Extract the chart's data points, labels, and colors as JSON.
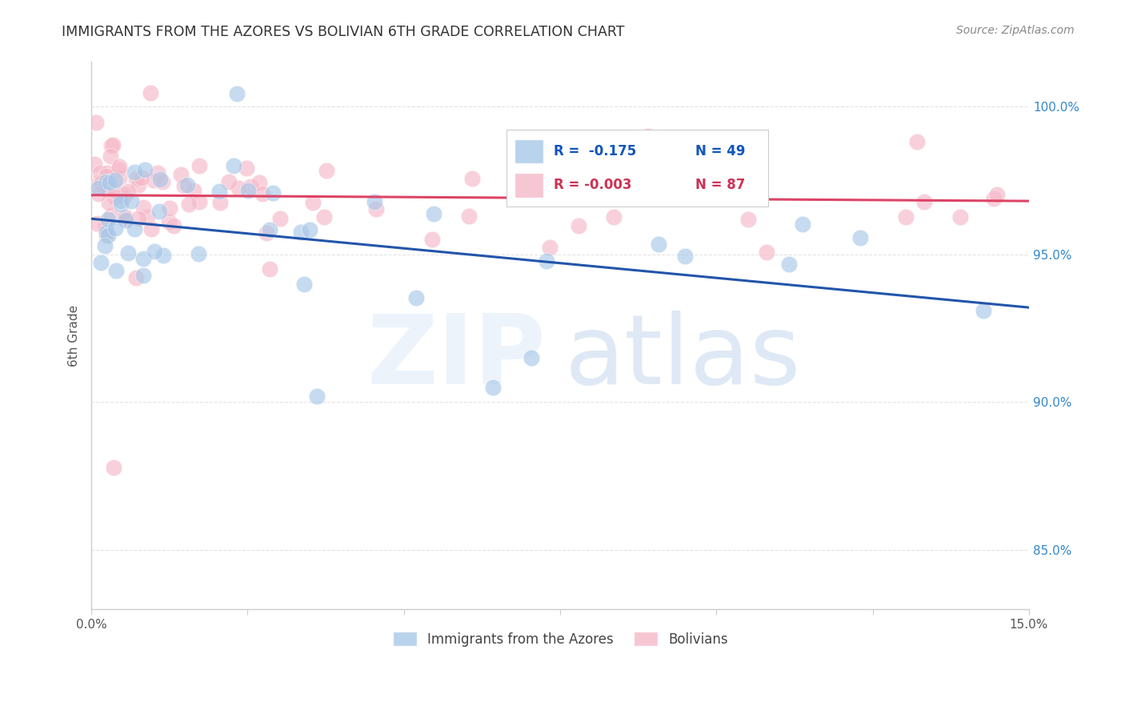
{
  "title": "IMMIGRANTS FROM THE AZORES VS BOLIVIAN 6TH GRADE CORRELATION CHART",
  "source": "Source: ZipAtlas.com",
  "ylabel": "6th Grade",
  "xlim": [
    0.0,
    15.0
  ],
  "ylim": [
    83.0,
    101.5
  ],
  "ytick_vals": [
    85.0,
    90.0,
    95.0,
    100.0
  ],
  "ytick_labels": [
    "85.0%",
    "90.0%",
    "95.0%",
    "100.0%"
  ],
  "xtick_positions": [
    0.0,
    2.5,
    5.0,
    7.5,
    10.0,
    12.5,
    15.0
  ],
  "legend_labels": [
    "Immigrants from the Azores",
    "Bolivians"
  ],
  "blue_color": "#a8c8e8",
  "pink_color": "#f5b8c8",
  "blue_line_color": "#2255aa",
  "pink_line_color": "#dd4466",
  "axis_color": "#cccccc",
  "ylabel_color": "#555555",
  "ytick_color": "#3388cc",
  "title_color": "#333333",
  "source_color": "#888888",
  "watermark_zip_color": "#dde8f5",
  "watermark_atlas_color": "#c8ddf0",
  "grid_color": "#dddddd",
  "legend_R_blue": "R =  -0.175",
  "legend_N_blue": "N = 49",
  "legend_R_pink": "R = -0.003",
  "legend_N_pink": "N = 87",
  "blue_line_y0": 96.2,
  "blue_line_y1": 93.2,
  "pink_line_y0": 97.0,
  "pink_line_y1": 96.8
}
